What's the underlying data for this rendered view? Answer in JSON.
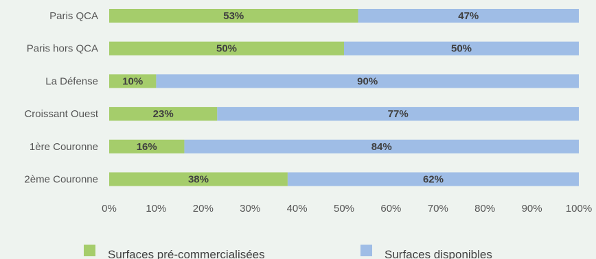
{
  "chart_data": {
    "type": "bar",
    "orientation": "horizontal",
    "stacked": "100%",
    "title": "",
    "xlabel": "",
    "ylabel": "",
    "categories": [
      "Paris QCA",
      "Paris hors QCA",
      "La Défense",
      "Croissant Ouest",
      "1ère Couronne",
      "2ème Couronne"
    ],
    "series": [
      {
        "name": "Surfaces pré-commercialisées",
        "values": [
          53,
          50,
          10,
          23,
          16,
          38
        ],
        "color": "#a5cd6b"
      },
      {
        "name": "Surfaces disponibles",
        "values": [
          47,
          50,
          90,
          77,
          84,
          62
        ],
        "color": "#9fbde6"
      }
    ],
    "data_labels": [
      [
        "53%",
        "50%",
        "10%",
        "23%",
        "16%",
        "38%"
      ],
      [
        "47%",
        "50%",
        "90%",
        "77%",
        "84%",
        "62%"
      ]
    ],
    "xlim": [
      0,
      100
    ],
    "x_ticks": [
      0,
      10,
      20,
      30,
      40,
      50,
      60,
      70,
      80,
      90,
      100
    ],
    "x_tick_labels": [
      "0%",
      "10%",
      "20%",
      "30%",
      "40%",
      "50%",
      "60%",
      "70%",
      "80%",
      "90%",
      "100%"
    ],
    "grid": false,
    "legend_position": "bottom"
  }
}
